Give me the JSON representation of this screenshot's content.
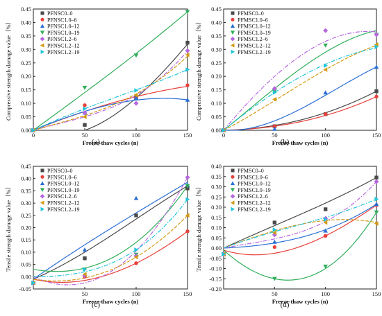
{
  "colors": {
    "s0": "#4a4a4a",
    "s1": "#e8403a",
    "s2": "#2a6fd4",
    "s3": "#2fae5a",
    "s4": "#b667e0",
    "s5": "#d49a14",
    "s6": "#1fc4d8",
    "g0": "#5a5a5a",
    "axis": "#222222"
  },
  "chart_data": [
    {
      "type": "scatter",
      "panel_label": "(a)",
      "xlabel": "Freeze-thaw cycles (n)",
      "ylabel": "Compressive strength damage value（%）",
      "xlim": [
        0,
        150
      ],
      "ylim": [
        0,
        0.45
      ],
      "xticks": [
        0,
        50,
        100,
        150
      ],
      "yticks": [
        0,
        0.05,
        0.1,
        0.15,
        0.2,
        0.25,
        0.3,
        0.35,
        0.4,
        0.45
      ],
      "xtick_labels": [
        "0",
        "50",
        "100",
        "150"
      ],
      "ytick_labels": [
        "0.00",
        "0.05",
        "0.10",
        "0.15",
        "0.20",
        "0.25",
        "0.30",
        "0.35",
        "0.40",
        "0.45"
      ],
      "legend_position": "top-left",
      "x": [
        0,
        50,
        100,
        150
      ],
      "series": [
        {
          "name": "PFNSC0–0",
          "values": [
            0,
            0.02,
            0.12,
            0.325
          ],
          "marker": "square",
          "fit": [
            0,
            0.0,
            0.12,
            0.32
          ]
        },
        {
          "name": "PFNSC1.0–6",
          "values": [
            0,
            0.093,
            0.12,
            0.167
          ],
          "marker": "circle",
          "fit": [
            0,
            0.07,
            0.125,
            0.163
          ]
        },
        {
          "name": "PFNSC1.0–12",
          "values": [
            0,
            0.065,
            0.12,
            0.113
          ],
          "marker": "tri-up",
          "fit": [
            0,
            0.07,
            0.112,
            0.113
          ]
        },
        {
          "name": "PFNSC1.0–19",
          "values": [
            0,
            0.158,
            0.278,
            0.44
          ],
          "marker": "tri-down",
          "fit": [
            0,
            0.14,
            0.285,
            0.44
          ]
        },
        {
          "name": "PFNSC1.2–6",
          "values": [
            0,
            0.065,
            0.1,
            0.295
          ],
          "marker": "diamond",
          "fit": [
            0,
            0.05,
            0.13,
            0.295
          ]
        },
        {
          "name": "PFNSC1.2–12",
          "values": [
            0,
            0.05,
            0.13,
            0.28
          ],
          "marker": "tri-left",
          "fit": [
            0,
            0.055,
            0.135,
            0.275
          ]
        },
        {
          "name": "PFNSC1.2–19",
          "values": [
            0,
            0.08,
            0.148,
            0.225
          ],
          "marker": "tri-right",
          "fit": [
            0,
            0.08,
            0.15,
            0.225
          ]
        }
      ]
    },
    {
      "type": "scatter",
      "panel_label": "(b)",
      "xlabel": "Freeze-thaw cycles (n)",
      "ylabel": "Compressive strength damage value（%）",
      "xlim": [
        0,
        150
      ],
      "ylim": [
        0,
        0.45
      ],
      "xticks": [
        0,
        50,
        100,
        150
      ],
      "yticks": [
        0,
        0.05,
        0.1,
        0.15,
        0.2,
        0.25,
        0.3,
        0.35,
        0.4,
        0.45
      ],
      "xtick_labels": [
        "0",
        "50",
        "100",
        "150"
      ],
      "ytick_labels": [
        "0.00",
        "0.05",
        "0.10",
        "0.15",
        "0.20",
        "0.25",
        "0.30",
        "0.35",
        "0.40",
        "0.45"
      ],
      "legend_position": "top-left",
      "x": [
        0,
        50,
        100,
        150
      ],
      "series": [
        {
          "name": "PFMSC0–0",
          "values": [
            0,
            0.015,
            0.06,
            0.145
          ],
          "marker": "square",
          "fit": [
            0,
            0.018,
            0.065,
            0.145
          ]
        },
        {
          "name": "PFMSC1.0–6",
          "values": [
            0,
            0.015,
            0.06,
            0.125
          ],
          "marker": "circle",
          "fit": [
            0,
            0.015,
            0.055,
            0.125
          ]
        },
        {
          "name": "PFMSC1.0–12",
          "values": [
            0,
            0.005,
            0.14,
            0.235
          ],
          "marker": "tri-up",
          "fit": [
            0,
            0.035,
            0.13,
            0.235
          ]
        },
        {
          "name": "PFMSC1.0–19",
          "values": [
            0,
            0.145,
            0.315,
            0.355
          ],
          "marker": "tri-down",
          "fit": [
            0,
            0.155,
            0.29,
            0.37
          ]
        },
        {
          "name": "PFMSC1.2–6",
          "values": [
            0,
            0.155,
            0.37,
            0.355
          ],
          "marker": "diamond",
          "fit": [
            0,
            0.2,
            0.33,
            0.365
          ]
        },
        {
          "name": "PFMSC1.2–12",
          "values": [
            0,
            0.115,
            0.225,
            0.318
          ],
          "marker": "tri-left",
          "fit": [
            0,
            0.11,
            0.225,
            0.315
          ]
        },
        {
          "name": "PFMSC1.2–19",
          "values": [
            0,
            0.14,
            0.24,
            0.31
          ],
          "marker": "tri-right",
          "fit": [
            0,
            0.14,
            0.245,
            0.305
          ]
        }
      ]
    },
    {
      "type": "scatter",
      "panel_label": "(c)",
      "xlabel": "Freeze-thaw cycles (n)",
      "ylabel": "Tensile strength damage value（%）",
      "xlim": [
        0,
        150
      ],
      "ylim": [
        -0.05,
        0.45
      ],
      "xticks": [
        50,
        100,
        150
      ],
      "yticks": [
        -0.05,
        0,
        0.05,
        0.1,
        0.15,
        0.2,
        0.25,
        0.3,
        0.35,
        0.4,
        0.45
      ],
      "xtick_labels": [
        "50",
        "100",
        "150"
      ],
      "ytick_labels": [
        "-0.05",
        "0.00",
        "0.05",
        "0.10",
        "0.15",
        "0.20",
        "0.25",
        "0.30",
        "0.35",
        "0.40",
        "0.45"
      ],
      "legend_position": "top-left",
      "x": [
        0,
        50,
        100,
        150
      ],
      "series": [
        {
          "name": "PFNSC0–0",
          "values": [
            -0.025,
            0.075,
            0.25,
            0.36
          ],
          "marker": "square",
          "fit": [
            -0.01,
            0.1,
            0.235,
            0.37
          ]
        },
        {
          "name": "PFNSC1.0–6",
          "values": [
            -0.025,
            0.0,
            0.055,
            0.185
          ],
          "marker": "circle",
          "fit": [
            -0.01,
            -0.015,
            0.055,
            0.185
          ]
        },
        {
          "name": "PFNSC1.0–12",
          "values": [
            -0.025,
            0.11,
            0.32,
            0.375
          ],
          "marker": "tri-up",
          "fit": [
            -0.01,
            0.13,
            0.26,
            0.385
          ]
        },
        {
          "name": "PFNSC1.0–19",
          "values": [
            -0.025,
            0.03,
            0.09,
            0.37
          ],
          "marker": "tri-down",
          "fit": [
            0.03,
            0.035,
            0.14,
            0.37
          ]
        },
        {
          "name": "PFNSC1.2–6",
          "values": [
            -0.025,
            0.005,
            0.085,
            0.405
          ],
          "marker": "diamond",
          "fit": [
            0.0,
            -0.025,
            0.105,
            0.405
          ]
        },
        {
          "name": "PFNSC1.2–12",
          "values": [
            -0.025,
            0.01,
            0.08,
            0.25
          ],
          "marker": "tri-left",
          "fit": [
            -0.01,
            -0.005,
            0.08,
            0.25
          ]
        },
        {
          "name": "PFNSC1.2–19",
          "values": [
            -0.025,
            0.03,
            0.11,
            0.315
          ],
          "marker": "tri-right",
          "fit": [
            0.0,
            0.02,
            0.11,
            0.315
          ]
        }
      ]
    },
    {
      "type": "scatter",
      "panel_label": "(d)",
      "xlabel": "Freeze-thaw cycles (n)",
      "ylabel": "Tensile strength damage value（%）",
      "xlim": [
        0,
        150
      ],
      "ylim": [
        -0.2,
        0.4
      ],
      "xticks": [
        50,
        100,
        150
      ],
      "yticks": [
        -0.2,
        -0.15,
        -0.1,
        -0.05,
        0,
        0.05,
        0.1,
        0.15,
        0.2,
        0.25,
        0.3,
        0.35,
        0.4
      ],
      "xtick_labels": [
        "50",
        "100",
        "150"
      ],
      "ytick_labels": [
        "-0.20",
        "-0.15",
        "-0.10",
        "-0.05",
        "0.00",
        "0.05",
        "0.10",
        "0.15",
        "0.20",
        "0.25",
        "0.30",
        "0.35",
        "0.40"
      ],
      "legend_position": "top-left",
      "x": [
        0,
        50,
        100,
        150
      ],
      "series": [
        {
          "name": "PFMSC0–0",
          "values": [
            -0.03,
            0.125,
            0.19,
            0.345
          ],
          "marker": "square",
          "fit": [
            0.0,
            0.11,
            0.22,
            0.345
          ]
        },
        {
          "name": "PFMSC1.0–6",
          "values": [
            -0.03,
            0.005,
            0.06,
            0.21
          ],
          "marker": "circle",
          "fit": [
            -0.01,
            -0.025,
            0.06,
            0.21
          ]
        },
        {
          "name": "PFMSC1.0–12",
          "values": [
            -0.03,
            0.03,
            0.085,
            0.215
          ],
          "marker": "tri-up",
          "fit": [
            0.0,
            0.025,
            0.09,
            0.215
          ]
        },
        {
          "name": "PFMSC1.0–19",
          "values": [
            -0.03,
            -0.15,
            -0.09,
            0.175
          ],
          "marker": "tri-down",
          "fit": [
            -0.01,
            -0.15,
            -0.1,
            0.175
          ]
        },
        {
          "name": "PFMSC1.2–6",
          "values": [
            -0.03,
            0.065,
            0.145,
            0.325
          ],
          "marker": "diamond",
          "fit": [
            0.0,
            0.045,
            0.13,
            0.325
          ]
        },
        {
          "name": "PFMSC1.2–12",
          "values": [
            -0.03,
            0.075,
            0.125,
            0.12
          ],
          "marker": "tri-left",
          "fit": [
            0.0,
            0.085,
            0.135,
            0.125
          ]
        },
        {
          "name": "PFMSC1.2–19",
          "values": [
            -0.03,
            0.09,
            0.14,
            0.24
          ],
          "marker": "tri-right",
          "fit": [
            0.0,
            0.08,
            0.15,
            0.24
          ]
        }
      ]
    }
  ]
}
